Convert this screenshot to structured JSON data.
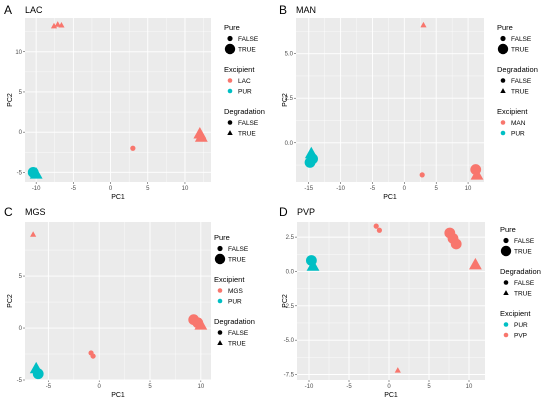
{
  "colors": {
    "red": "#F8766D",
    "teal": "#00BFC4",
    "panel_bg": "#EBEBEB",
    "grid": "#FFFFFF"
  },
  "chart_data": [
    {
      "type": "scatter",
      "panel_label": "A",
      "title": "LAC",
      "xlabel": "PC1",
      "ylabel": "PC2",
      "xlim": [
        -11.5,
        13.5
      ],
      "ylim": [
        -6.2,
        14.2
      ],
      "x_ticks": [
        -10,
        -5,
        0,
        5,
        10
      ],
      "y_ticks": [
        -5,
        0,
        5,
        10
      ],
      "legend": [
        {
          "title": "Pure",
          "items": [
            {
              "label": "FALSE",
              "kind": "size",
              "size": 2.6
            },
            {
              "label": "TRUE",
              "kind": "size",
              "size": 5.2
            }
          ]
        },
        {
          "title": "Excipient",
          "items": [
            {
              "label": "LAC",
              "kind": "color",
              "color": "#F8766D"
            },
            {
              "label": "PUR",
              "kind": "color",
              "color": "#00BFC4"
            }
          ]
        },
        {
          "title": "Degradation",
          "items": [
            {
              "label": "FALSE",
              "kind": "shape",
              "shape": "circle"
            },
            {
              "label": "TRUE",
              "kind": "shape",
              "shape": "triangle"
            }
          ]
        }
      ],
      "points": [
        {
          "x": -7.6,
          "y": 13.2,
          "color": "red",
          "shape": "triangle",
          "size": 2.6
        },
        {
          "x": -7.1,
          "y": 13.4,
          "color": "red",
          "shape": "triangle",
          "size": 2.6
        },
        {
          "x": -6.6,
          "y": 13.3,
          "color": "red",
          "shape": "triangle",
          "size": 2.6
        },
        {
          "x": 3.0,
          "y": -2.0,
          "color": "red",
          "shape": "circle",
          "size": 2.6
        },
        {
          "x": 12.0,
          "y": -0.2,
          "color": "red",
          "shape": "triangle",
          "size": 5.4
        },
        {
          "x": 12.2,
          "y": -0.6,
          "color": "red",
          "shape": "triangle",
          "size": 5.4
        },
        {
          "x": -10.4,
          "y": -5.0,
          "color": "teal",
          "shape": "circle",
          "size": 5.4
        },
        {
          "x": -10.0,
          "y": -5.2,
          "color": "teal",
          "shape": "triangle",
          "size": 5.4
        }
      ]
    },
    {
      "type": "scatter",
      "panel_label": "B",
      "title": "MAN",
      "xlabel": "PC1",
      "ylabel": "PC2",
      "xlim": [
        -17,
        12.5
      ],
      "ylim": [
        -2.2,
        7.0
      ],
      "x_ticks": [
        -15,
        -10,
        -5,
        0,
        5,
        10
      ],
      "y_ticks": [
        0.0,
        2.5,
        5.0
      ],
      "y_tick_labels": [
        "0.0",
        "2.5",
        "5.0"
      ],
      "legend": [
        {
          "title": "Pure",
          "items": [
            {
              "label": "FALSE",
              "kind": "size",
              "size": 2.6
            },
            {
              "label": "TRUE",
              "kind": "size",
              "size": 5.2
            }
          ]
        },
        {
          "title": "Degradation",
          "items": [
            {
              "label": "FALSE",
              "kind": "shape",
              "shape": "circle"
            },
            {
              "label": "TRUE",
              "kind": "shape",
              "shape": "triangle"
            }
          ]
        },
        {
          "title": "Excipient",
          "items": [
            {
              "label": "MAN",
              "kind": "color",
              "color": "#F8766D"
            },
            {
              "label": "PUR",
              "kind": "color",
              "color": "#00BFC4"
            }
          ]
        }
      ],
      "points": [
        {
          "x": 3.0,
          "y": 6.6,
          "color": "red",
          "shape": "triangle",
          "size": 2.6
        },
        {
          "x": 2.8,
          "y": -1.8,
          "color": "red",
          "shape": "circle",
          "size": 2.6
        },
        {
          "x": 11.2,
          "y": -1.5,
          "color": "red",
          "shape": "circle",
          "size": 5.4
        },
        {
          "x": 11.4,
          "y": -1.8,
          "color": "red",
          "shape": "triangle",
          "size": 5.4
        },
        {
          "x": -14.6,
          "y": -0.6,
          "color": "teal",
          "shape": "triangle",
          "size": 5.4
        },
        {
          "x": -14.4,
          "y": -0.9,
          "color": "teal",
          "shape": "circle",
          "size": 5.4
        },
        {
          "x": -14.8,
          "y": -1.1,
          "color": "teal",
          "shape": "circle",
          "size": 5.4
        }
      ]
    },
    {
      "type": "scatter",
      "panel_label": "C",
      "title": "MGS",
      "xlabel": "PC1",
      "ylabel": "PC2",
      "xlim": [
        -7.3,
        11.0
      ],
      "ylim": [
        -5.0,
        10.2
      ],
      "x_ticks": [
        -5,
        0,
        5,
        10
      ],
      "y_ticks": [
        -5,
        0,
        5
      ],
      "legend": [
        {
          "title": "Pure",
          "items": [
            {
              "label": "FALSE",
              "kind": "size",
              "size": 2.6
            },
            {
              "label": "TRUE",
              "kind": "size",
              "size": 5.2
            }
          ]
        },
        {
          "title": "Excipient",
          "items": [
            {
              "label": "MGS",
              "kind": "color",
              "color": "#F8766D"
            },
            {
              "label": "PUR",
              "kind": "color",
              "color": "#00BFC4"
            }
          ]
        },
        {
          "title": "Degradation",
          "items": [
            {
              "label": "FALSE",
              "kind": "shape",
              "shape": "circle"
            },
            {
              "label": "TRUE",
              "kind": "shape",
              "shape": "triangle"
            }
          ]
        }
      ],
      "points": [
        {
          "x": -6.5,
          "y": 9.0,
          "color": "red",
          "shape": "triangle",
          "size": 2.6
        },
        {
          "x": -0.8,
          "y": -2.4,
          "color": "red",
          "shape": "circle",
          "size": 2.6
        },
        {
          "x": -0.6,
          "y": -2.7,
          "color": "red",
          "shape": "circle",
          "size": 2.6
        },
        {
          "x": 9.3,
          "y": 0.8,
          "color": "red",
          "shape": "circle",
          "size": 5.4
        },
        {
          "x": 9.7,
          "y": 0.5,
          "color": "red",
          "shape": "circle",
          "size": 5.4
        },
        {
          "x": 10.0,
          "y": 0.3,
          "color": "red",
          "shape": "triangle",
          "size": 5.4
        },
        {
          "x": -6.2,
          "y": -3.9,
          "color": "teal",
          "shape": "triangle",
          "size": 5.4
        },
        {
          "x": -6.0,
          "y": -4.4,
          "color": "teal",
          "shape": "circle",
          "size": 5.4
        }
      ]
    },
    {
      "type": "scatter",
      "panel_label": "D",
      "title": "PVP",
      "xlabel": "PC1",
      "ylabel": "PC2",
      "xlim": [
        -11.5,
        12.0
      ],
      "ylim": [
        -7.9,
        3.6
      ],
      "x_ticks": [
        -10,
        -5,
        0,
        5,
        10
      ],
      "y_ticks": [
        -7.5,
        -5.0,
        -2.5,
        0.0,
        2.5
      ],
      "y_tick_labels": [
        "-7.5",
        "-5.0",
        "-2.5",
        "0.0",
        "2.5"
      ],
      "legend": [
        {
          "title": "Pure",
          "items": [
            {
              "label": "FALSE",
              "kind": "size",
              "size": 2.6
            },
            {
              "label": "TRUE",
              "kind": "size",
              "size": 5.2
            }
          ]
        },
        {
          "title": "Degradation",
          "items": [
            {
              "label": "FALSE",
              "kind": "shape",
              "shape": "circle"
            },
            {
              "label": "TRUE",
              "kind": "shape",
              "shape": "triangle"
            }
          ]
        },
        {
          "title": "Excipient",
          "items": [
            {
              "label": "PUR",
              "kind": "color",
              "color": "#00BFC4"
            },
            {
              "label": "PVP",
              "kind": "color",
              "color": "#F8766D"
            }
          ]
        }
      ],
      "points": [
        {
          "x": -1.6,
          "y": 3.3,
          "color": "red",
          "shape": "circle",
          "size": 2.6
        },
        {
          "x": -1.2,
          "y": 3.0,
          "color": "red",
          "shape": "circle",
          "size": 2.6
        },
        {
          "x": 7.6,
          "y": 2.8,
          "color": "red",
          "shape": "circle",
          "size": 5.4
        },
        {
          "x": 8.0,
          "y": 2.4,
          "color": "red",
          "shape": "circle",
          "size": 5.4
        },
        {
          "x": 8.4,
          "y": 2.0,
          "color": "red",
          "shape": "circle",
          "size": 5.4
        },
        {
          "x": 10.8,
          "y": 0.5,
          "color": "red",
          "shape": "triangle",
          "size": 5.4
        },
        {
          "x": 1.1,
          "y": -7.2,
          "color": "red",
          "shape": "triangle",
          "size": 2.6
        },
        {
          "x": -9.7,
          "y": 0.8,
          "color": "teal",
          "shape": "circle",
          "size": 5.4
        },
        {
          "x": -9.5,
          "y": 0.4,
          "color": "teal",
          "shape": "triangle",
          "size": 5.4
        }
      ]
    }
  ]
}
